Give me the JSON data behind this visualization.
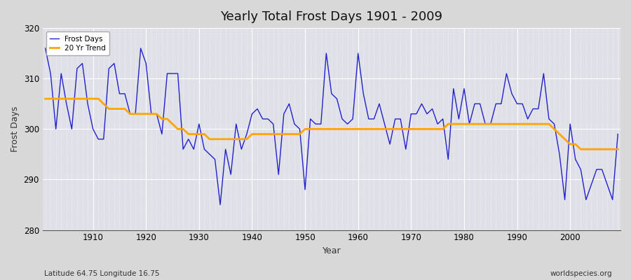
{
  "title": "Yearly Total Frost Days 1901 - 2009",
  "xlabel": "Year",
  "ylabel": "Frost Days",
  "subtitle": "Latitude 64.75 Longitude 16.75",
  "watermark": "worldspecies.org",
  "ylim": [
    280,
    320
  ],
  "yticks": [
    280,
    290,
    300,
    310,
    320
  ],
  "bg_outer": "#d8d8d8",
  "bg_inner": "#e0e0e8",
  "grid_color": "#ffffff",
  "line_color": "#2222cc",
  "trend_color": "#FFA500",
  "years": [
    1901,
    1902,
    1903,
    1904,
    1905,
    1906,
    1907,
    1908,
    1909,
    1910,
    1911,
    1912,
    1913,
    1914,
    1915,
    1916,
    1917,
    1918,
    1919,
    1920,
    1921,
    1922,
    1923,
    1924,
    1925,
    1926,
    1927,
    1928,
    1929,
    1930,
    1931,
    1932,
    1933,
    1934,
    1935,
    1936,
    1937,
    1938,
    1939,
    1940,
    1941,
    1942,
    1943,
    1944,
    1945,
    1946,
    1947,
    1948,
    1949,
    1950,
    1951,
    1952,
    1953,
    1954,
    1955,
    1956,
    1957,
    1958,
    1959,
    1960,
    1961,
    1962,
    1963,
    1964,
    1965,
    1966,
    1967,
    1968,
    1969,
    1970,
    1971,
    1972,
    1973,
    1974,
    1975,
    1976,
    1977,
    1978,
    1979,
    1980,
    1981,
    1982,
    1983,
    1984,
    1985,
    1986,
    1987,
    1988,
    1989,
    1990,
    1991,
    1992,
    1993,
    1994,
    1995,
    1996,
    1997,
    1998,
    1999,
    2000,
    2001,
    2002,
    2003,
    2004,
    2005,
    2006,
    2007,
    2008,
    2009
  ],
  "frost_days": [
    316,
    311,
    300,
    311,
    305,
    300,
    312,
    313,
    305,
    300,
    298,
    298,
    312,
    313,
    307,
    307,
    303,
    303,
    316,
    313,
    303,
    303,
    299,
    311,
    311,
    311,
    296,
    298,
    296,
    301,
    296,
    295,
    294,
    285,
    296,
    291,
    301,
    296,
    299,
    303,
    304,
    302,
    302,
    301,
    291,
    303,
    305,
    301,
    300,
    288,
    302,
    301,
    301,
    315,
    307,
    306,
    302,
    301,
    302,
    315,
    307,
    302,
    302,
    305,
    301,
    297,
    302,
    302,
    296,
    303,
    303,
    305,
    303,
    304,
    301,
    302,
    294,
    308,
    302,
    308,
    301,
    305,
    305,
    301,
    301,
    305,
    305,
    311,
    307,
    305,
    305,
    302,
    304,
    304,
    311,
    302,
    301,
    295,
    286,
    301,
    294,
    292,
    286,
    289,
    292,
    292,
    289,
    286,
    299
  ],
  "trend_days": [
    306,
    306,
    306,
    306,
    306,
    306,
    306,
    306,
    306,
    306,
    306,
    305,
    304,
    304,
    304,
    304,
    303,
    303,
    303,
    303,
    303,
    303,
    302,
    302,
    301,
    300,
    300,
    299,
    299,
    299,
    299,
    298,
    298,
    298,
    298,
    298,
    298,
    298,
    298,
    299,
    299,
    299,
    299,
    299,
    299,
    299,
    299,
    299,
    299,
    300,
    300,
    300,
    300,
    300,
    300,
    300,
    300,
    300,
    300,
    300,
    300,
    300,
    300,
    300,
    300,
    300,
    300,
    300,
    300,
    300,
    300,
    300,
    300,
    300,
    300,
    300,
    301,
    301,
    301,
    301,
    301,
    301,
    301,
    301,
    301,
    301,
    301,
    301,
    301,
    301,
    301,
    301,
    301,
    301,
    301,
    301,
    300,
    299,
    298,
    297,
    297,
    296,
    296,
    296,
    296,
    296,
    296,
    296,
    296
  ]
}
